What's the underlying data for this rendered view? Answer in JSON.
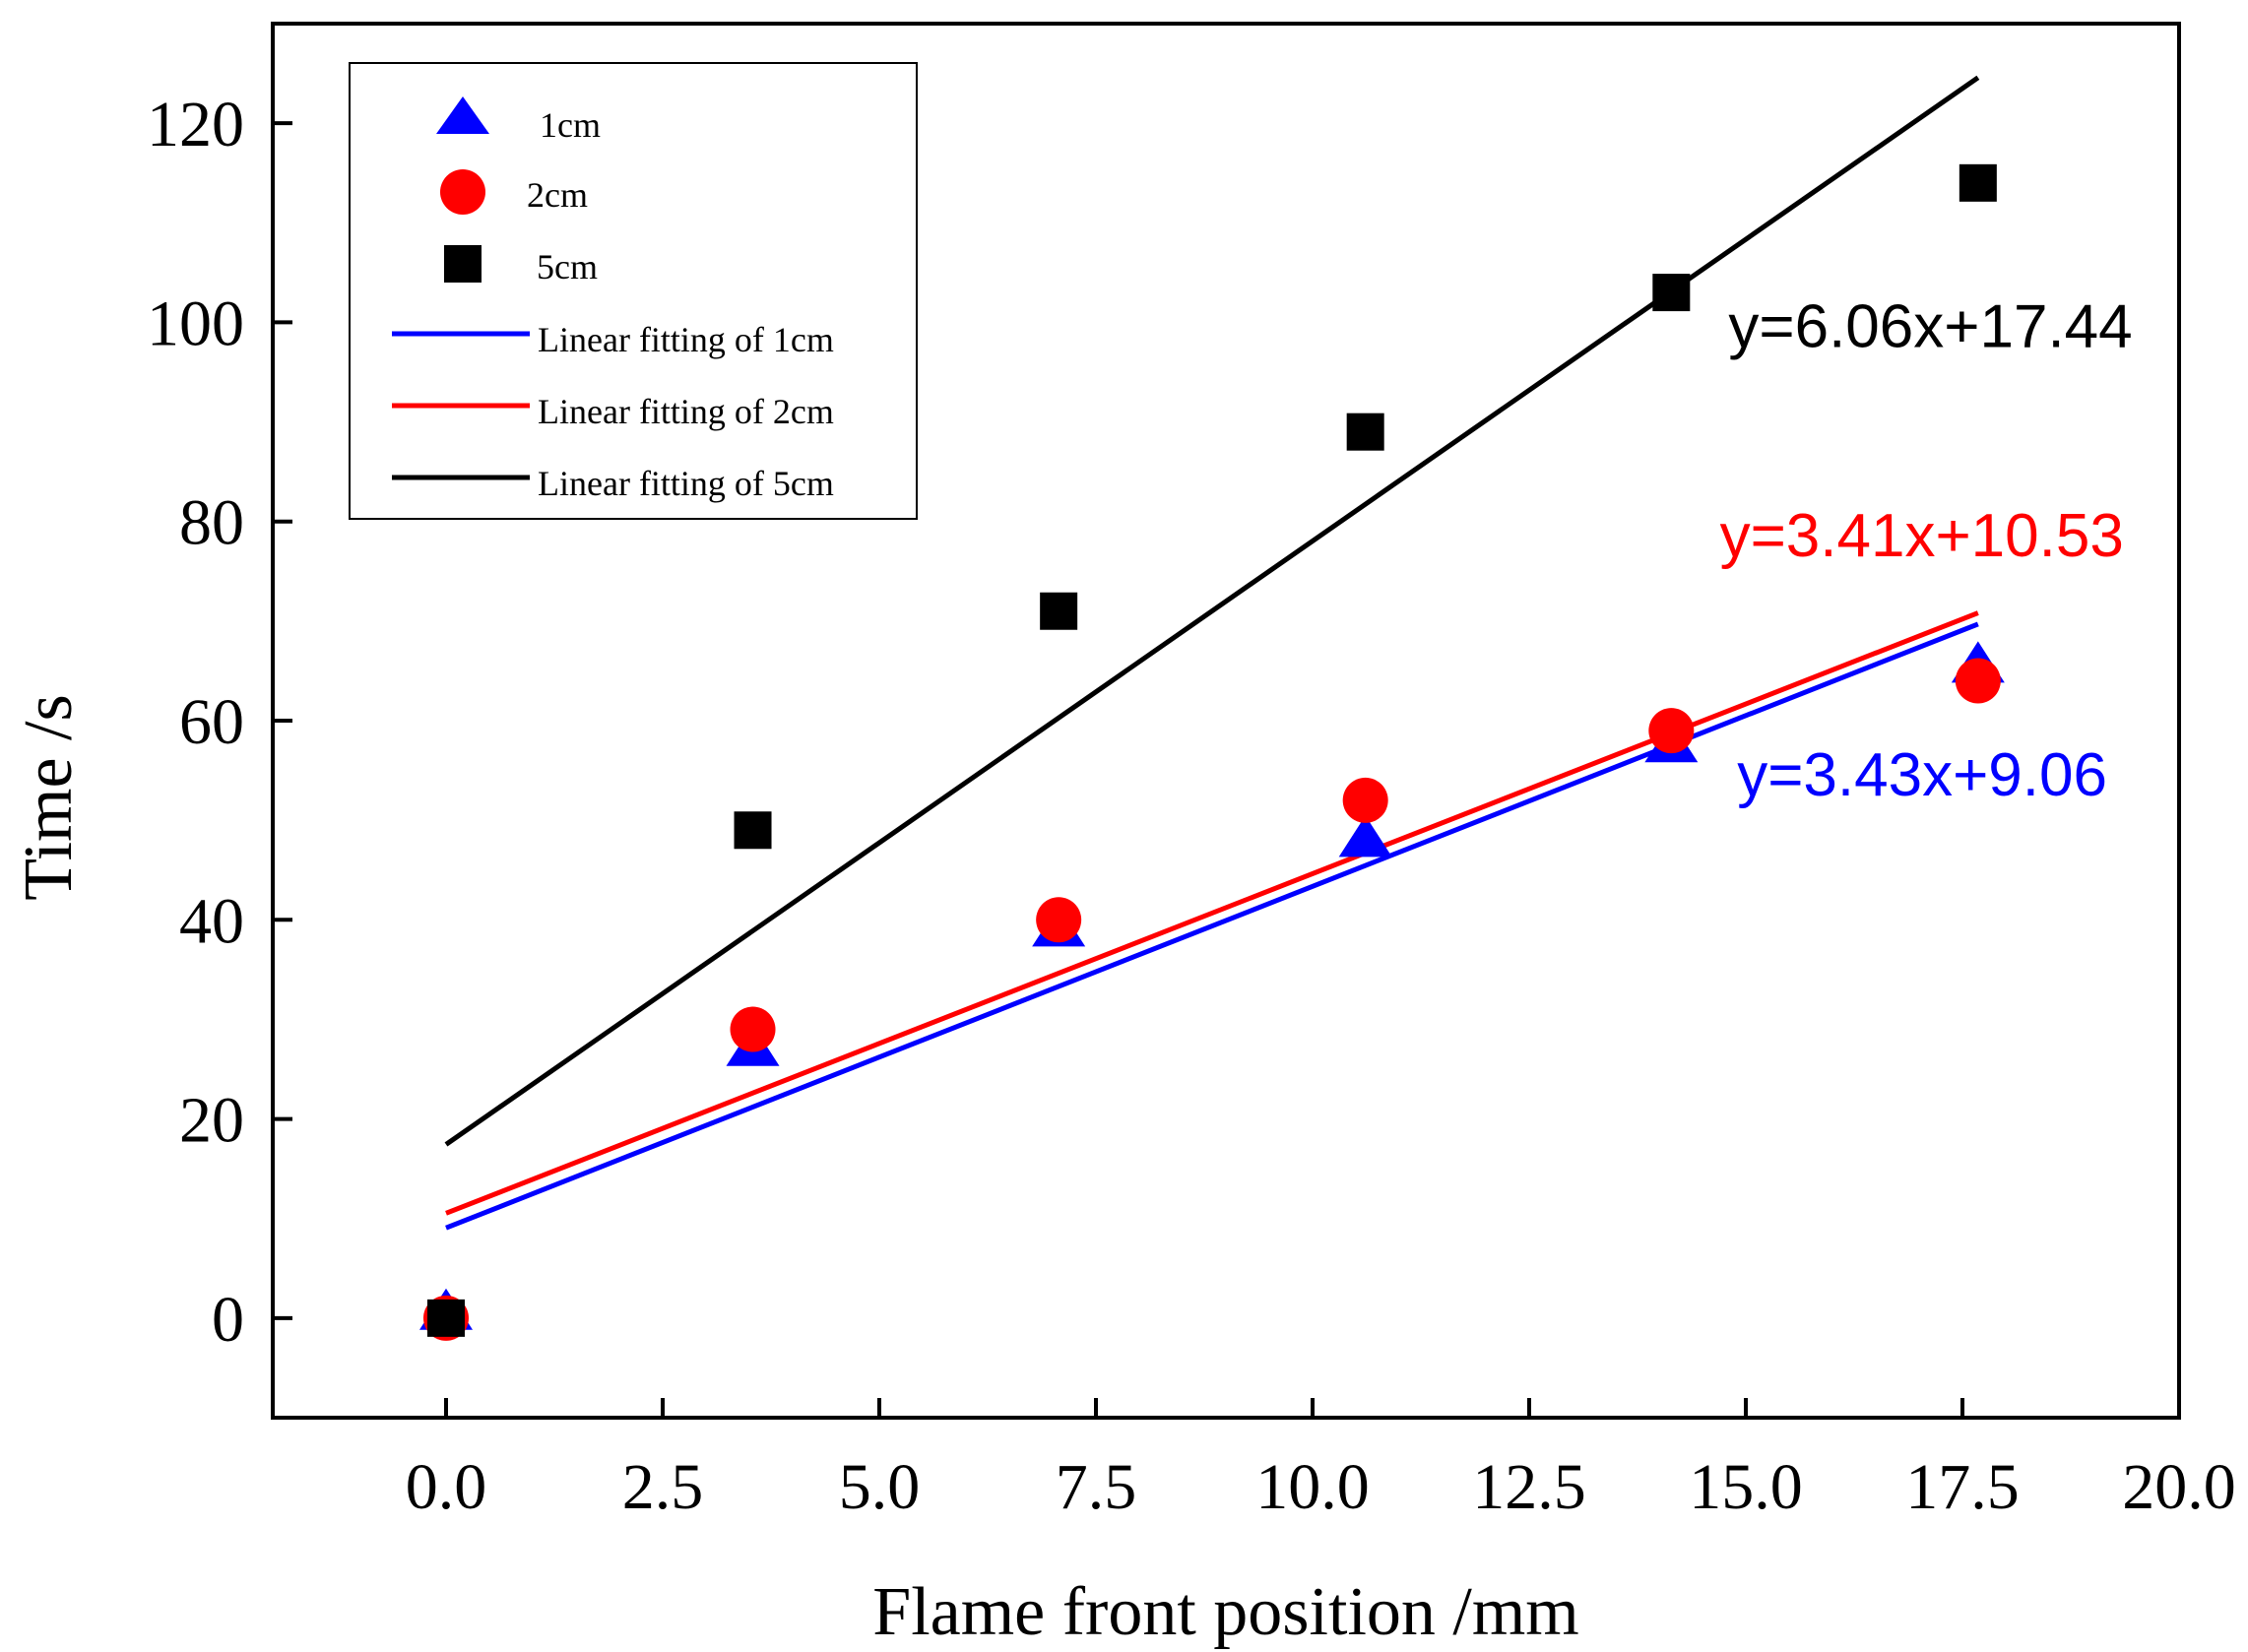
{
  "chart_data": {
    "type": "scatter",
    "title": "",
    "xlabel": "Flame front position /mm",
    "ylabel": "Time /s",
    "xlim": [
      -2,
      20
    ],
    "ylim": [
      -10,
      130
    ],
    "x_ticks": [
      "0.0",
      "2.5",
      "5.0",
      "7.5",
      "10.0",
      "12.5",
      "15.0",
      "17.5",
      "20.0"
    ],
    "y_ticks": [
      "0",
      "20",
      "40",
      "60",
      "80",
      "100",
      "120"
    ],
    "x_tick_values": [
      0,
      2.5,
      5,
      7.5,
      10,
      12.5,
      15,
      17.5,
      20
    ],
    "y_tick_values": [
      0,
      20,
      40,
      60,
      80,
      100,
      120
    ],
    "legend_position": "top-left",
    "series": [
      {
        "name": "1cm",
        "marker": "triangle",
        "color": "#0000ff",
        "x": [
          0,
          3.54,
          7.07,
          10.61,
          14.14,
          17.68
        ],
        "y": [
          0.5,
          27,
          39,
          48,
          57.5,
          65.5
        ]
      },
      {
        "name": "2cm",
        "marker": "circle",
        "color": "#ff0000",
        "x": [
          0,
          3.54,
          7.07,
          10.61,
          14.14,
          17.68
        ],
        "y": [
          0,
          29,
          40,
          52,
          59,
          64
        ]
      },
      {
        "name": "5cm",
        "marker": "square",
        "color": "#000000",
        "x": [
          0,
          3.54,
          7.07,
          10.61,
          14.14,
          17.68
        ],
        "y": [
          0,
          49,
          71,
          89,
          103,
          114
        ]
      }
    ],
    "fits": [
      {
        "name": "Linear fitting of  1cm",
        "color": "#0000ff",
        "x_range": [
          0,
          17.68
        ],
        "y_range": [
          9.06,
          69.7
        ],
        "equation": "y=3.43x+9.06"
      },
      {
        "name": "Linear fitting of  2cm",
        "color": "#ff0000",
        "x_range": [
          0,
          17.68
        ],
        "y_range": [
          10.53,
          70.82
        ],
        "equation": "y=3.41x+10.53"
      },
      {
        "name": "Linear fitting of  5cm",
        "color": "#000000",
        "x_range": [
          0,
          17.68
        ],
        "y_range": [
          17.44,
          124.58
        ],
        "equation": "y=6.06x+17.44"
      }
    ],
    "equation_anchors": [
      {
        "text_index": 0,
        "x": 14.9,
        "y": 52.5
      },
      {
        "text_index": 1,
        "x": 14.7,
        "y": 76.5
      },
      {
        "text_index": 2,
        "x": 14.8,
        "y": 97.5
      }
    ]
  }
}
